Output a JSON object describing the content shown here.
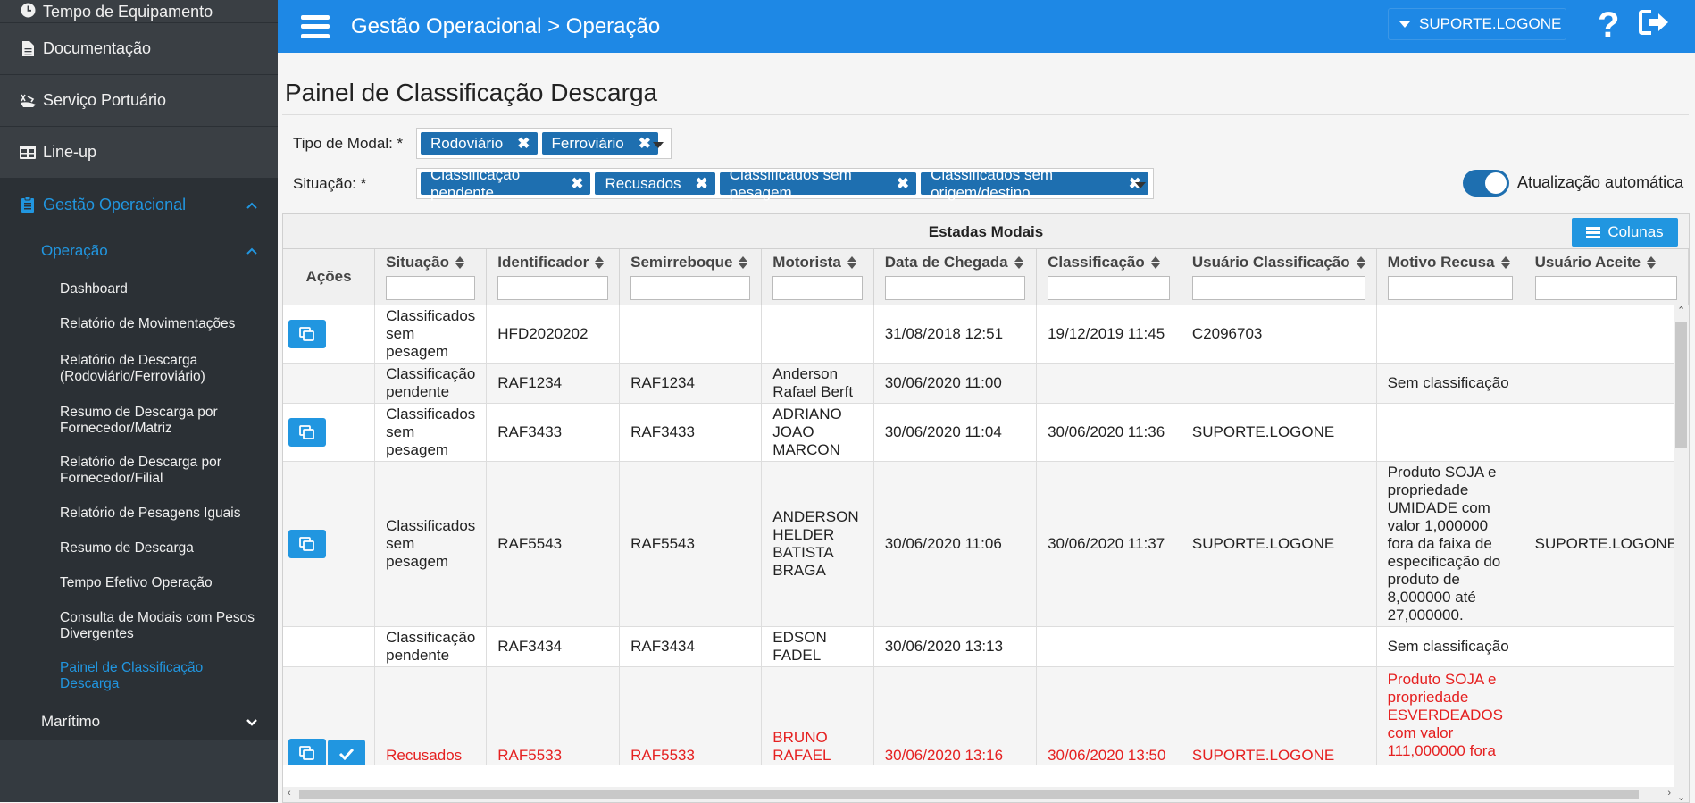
{
  "sidebar": {
    "top_items": [
      {
        "label": "Tempo de Equipamento",
        "icon": "clock-icon"
      },
      {
        "label": "Documentação",
        "icon": "document-icon"
      },
      {
        "label": "Serviço Portuário",
        "icon": "ship-icon"
      },
      {
        "label": "Line-up",
        "icon": "table-icon"
      }
    ],
    "active_section": {
      "label": "Gestão Operacional",
      "icon": "clipboard-icon"
    },
    "sub_section": {
      "label": "Operação"
    },
    "sub_items": [
      {
        "label": "Dashboard",
        "current": false
      },
      {
        "label": "Relatório de Movimentações",
        "current": false
      },
      {
        "label": "Relatório de Descarga (Rodoviário/Ferroviário)",
        "current": false
      },
      {
        "label": "Resumo de Descarga por Fornecedor/Matriz",
        "current": false
      },
      {
        "label": "Relatório de Descarga por Fornecedor/Filial",
        "current": false
      },
      {
        "label": "Relatório de Pesagens Iguais",
        "current": false
      },
      {
        "label": "Resumo de Descarga",
        "current": false
      },
      {
        "label": "Tempo Efetivo Operação",
        "current": false
      },
      {
        "label": "Consulta de Modais com Pesos Divergentes",
        "current": false
      },
      {
        "label": "Painel de Classificação Descarga",
        "current": true
      }
    ],
    "collapsed_section": {
      "label": "Marítimo"
    }
  },
  "header": {
    "breadcrumb": "Gestão Operacional > Operação",
    "user": "SUPORTE.LOGONE",
    "help": "?"
  },
  "page": {
    "title": "Painel de Classificação Descarga",
    "modal_label": "Tipo de Modal: *",
    "modal_tags": [
      "Rodoviário",
      "Ferroviário"
    ],
    "situacao_label": "Situação: *",
    "situacao_tags": [
      "Classificação pendente",
      "Recusados",
      "Classificados sem pesagem",
      "Classificados sem origem/destino"
    ],
    "auto_update_label": "Atualização automática",
    "auto_update_on": true
  },
  "grid": {
    "caption": "Estadas Modais",
    "columns_button": "Colunas",
    "actions_header": "Ações",
    "columns": [
      "Situação",
      "Identificador",
      "Semirreboque",
      "Motorista",
      "Data de Chegada",
      "Classificação",
      "Usuário Classificação",
      "Motivo Recusa",
      "Usuário Aceite"
    ],
    "rows": [
      {
        "buttons": [
          "copy"
        ],
        "alt": false,
        "red": false,
        "cells": [
          "Classificados sem pesagem",
          "HFD2020202",
          "",
          "",
          "31/08/2018 12:51",
          "19/12/2019 11:45",
          "C2096703",
          "",
          ""
        ]
      },
      {
        "buttons": [],
        "alt": true,
        "red": false,
        "cells": [
          "Classificação pendente",
          "RAF1234",
          "RAF1234",
          "Anderson Rafael Berft",
          "30/06/2020 11:00",
          "",
          "",
          "Sem classificação",
          ""
        ]
      },
      {
        "buttons": [
          "copy"
        ],
        "alt": false,
        "red": false,
        "cells": [
          "Classificados sem pesagem",
          "RAF3433",
          "RAF3433",
          "ADRIANO JOAO MARCON",
          "30/06/2020 11:04",
          "30/06/2020 11:36",
          "SUPORTE.LOGONE",
          "",
          ""
        ]
      },
      {
        "buttons": [
          "copy"
        ],
        "alt": true,
        "red": false,
        "cells": [
          "Classificados sem pesagem",
          "RAF5543",
          "RAF5543",
          "ANDERSON HELDER BATISTA BRAGA",
          "30/06/2020 11:06",
          "30/06/2020 11:37",
          "SUPORTE.LOGONE",
          "Produto SOJA e propriedade UMIDADE com valor 1,000000 fora da faixa de especificação do produto de 8,000000 até 27,000000.",
          "SUPORTE.LOGONE"
        ]
      },
      {
        "buttons": [],
        "alt": false,
        "red": false,
        "cells": [
          "Classificação pendente",
          "RAF3434",
          "RAF3434",
          "EDSON FADEL",
          "30/06/2020 13:13",
          "",
          "",
          "Sem classificação",
          ""
        ]
      },
      {
        "buttons": [
          "copy",
          "check"
        ],
        "alt": true,
        "red": true,
        "cells": [
          "Recusados",
          "RAF5533",
          "RAF5533",
          "BRUNO RAFAEL",
          "30/06/2020 13:16",
          "30/06/2020 13:50",
          "SUPORTE.LOGONE",
          "Produto SOJA e propriedade ESVERDEADOS com valor 111,000000 fora",
          ""
        ]
      }
    ]
  },
  "colors": {
    "primary": "#1e88e5",
    "sidebar": "#343a40",
    "tag": "#1e6fb0",
    "refused_text": "#e52020",
    "active_link": "#2196e0"
  }
}
